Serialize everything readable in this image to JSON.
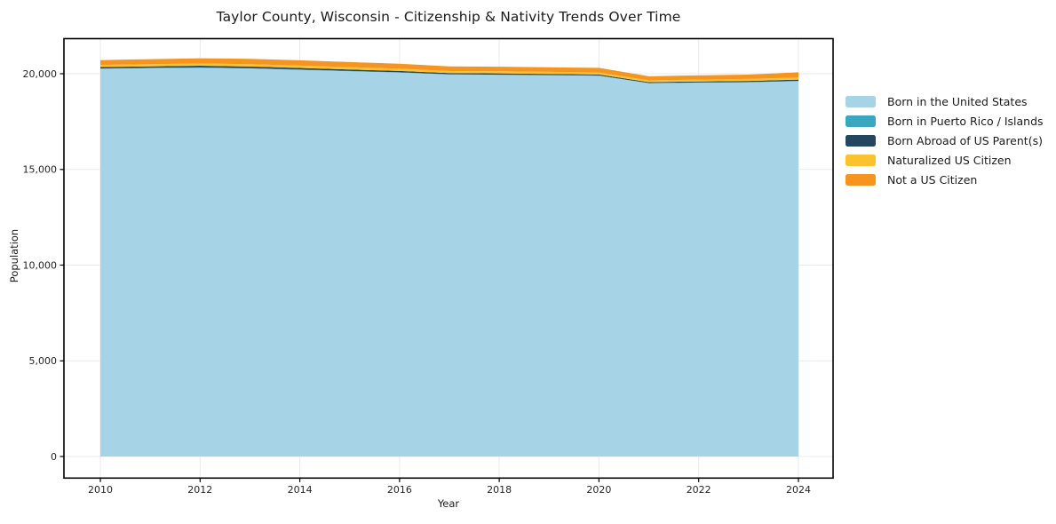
{
  "chart_data": {
    "type": "area",
    "stacked": true,
    "title": "Taylor County, Wisconsin - Citizenship & Nativity Trends Over Time",
    "xlabel": "Year",
    "ylabel": "Population",
    "grid": true,
    "grid_color": "#e9e9e9",
    "background": "#ffffff",
    "spine_color": "#000000",
    "legend_position": "right-outside",
    "x": [
      2010,
      2011,
      2012,
      2013,
      2014,
      2015,
      2016,
      2017,
      2018,
      2019,
      2020,
      2021,
      2022,
      2023,
      2024
    ],
    "x_ticks": [
      {
        "value": 2010,
        "label": "2010"
      },
      {
        "value": 2012,
        "label": "2012"
      },
      {
        "value": 2014,
        "label": "2014"
      },
      {
        "value": 2016,
        "label": "2016"
      },
      {
        "value": 2018,
        "label": "2018"
      },
      {
        "value": 2020,
        "label": "2020"
      },
      {
        "value": 2022,
        "label": "2022"
      },
      {
        "value": 2024,
        "label": "2024"
      }
    ],
    "y_ticks": [
      {
        "value": 0,
        "label": "0"
      },
      {
        "value": 5000,
        "label": "5,000"
      },
      {
        "value": 10000,
        "label": "10,000"
      },
      {
        "value": 15000,
        "label": "15,000"
      },
      {
        "value": 20000,
        "label": "20,000"
      }
    ],
    "ylim": [
      0,
      21800
    ],
    "xlim": [
      2009.3,
      2024.7
    ],
    "series": [
      {
        "name": "Born in the United States",
        "color": "#a6d4e6",
        "values": [
          20260,
          20290,
          20310,
          20270,
          20200,
          20130,
          20060,
          19960,
          19940,
          19920,
          19890,
          19500,
          19530,
          19550,
          19610
        ]
      },
      {
        "name": "Born in Puerto Rico / Islands",
        "color": "#3ba6c0",
        "values": [
          15,
          15,
          20,
          20,
          20,
          15,
          15,
          10,
          10,
          10,
          15,
          10,
          10,
          15,
          15
        ]
      },
      {
        "name": "Born Abroad of US Parent(s)",
        "color": "#25465f",
        "values": [
          75,
          80,
          85,
          85,
          80,
          75,
          70,
          65,
          65,
          60,
          55,
          50,
          55,
          60,
          65
        ]
      },
      {
        "name": "Naturalized US Citizen",
        "color": "#fcc22e",
        "values": [
          110,
          115,
          120,
          125,
          125,
          120,
          115,
          105,
          110,
          110,
          105,
          90,
          95,
          100,
          115
        ]
      },
      {
        "name": "Not a US Citizen",
        "color": "#f79420",
        "values": [
          250,
          260,
          270,
          280,
          275,
          270,
          260,
          245,
          240,
          235,
          245,
          215,
          225,
          230,
          270
        ]
      }
    ]
  }
}
